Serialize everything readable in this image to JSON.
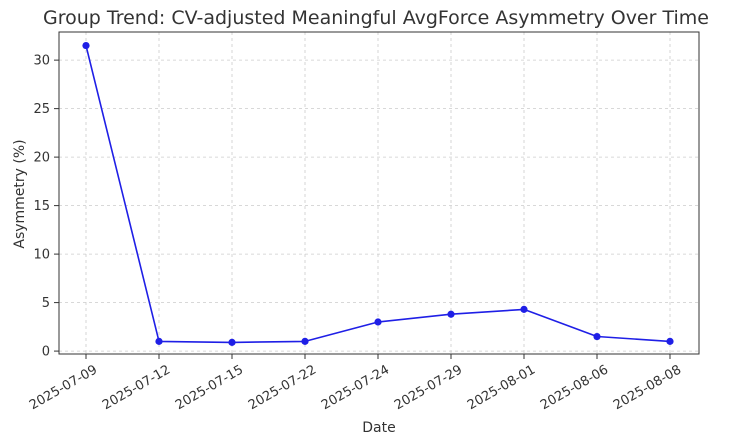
{
  "chart_data": {
    "type": "line",
    "title": "Group Trend: CV-adjusted Meaningful AvgForce Asymmetry Over Time",
    "xlabel": "Date",
    "ylabel": "Asymmetry (%)",
    "categories": [
      "2025-07-09",
      "2025-07-12",
      "2025-07-15",
      "2025-07-22",
      "2025-07-24",
      "2025-07-29",
      "2025-08-01",
      "2025-08-06",
      "2025-08-08"
    ],
    "series": [
      {
        "values": [
          31.5,
          1.0,
          0.9,
          1.0,
          3.0,
          3.8,
          4.3,
          1.5,
          1.0
        ],
        "color": "#1f1fe6"
      }
    ],
    "yticks": [
      0,
      5,
      10,
      15,
      20,
      25,
      30
    ],
    "ylim": [
      -0.3,
      32.9
    ],
    "grid": true,
    "legend": "none"
  }
}
